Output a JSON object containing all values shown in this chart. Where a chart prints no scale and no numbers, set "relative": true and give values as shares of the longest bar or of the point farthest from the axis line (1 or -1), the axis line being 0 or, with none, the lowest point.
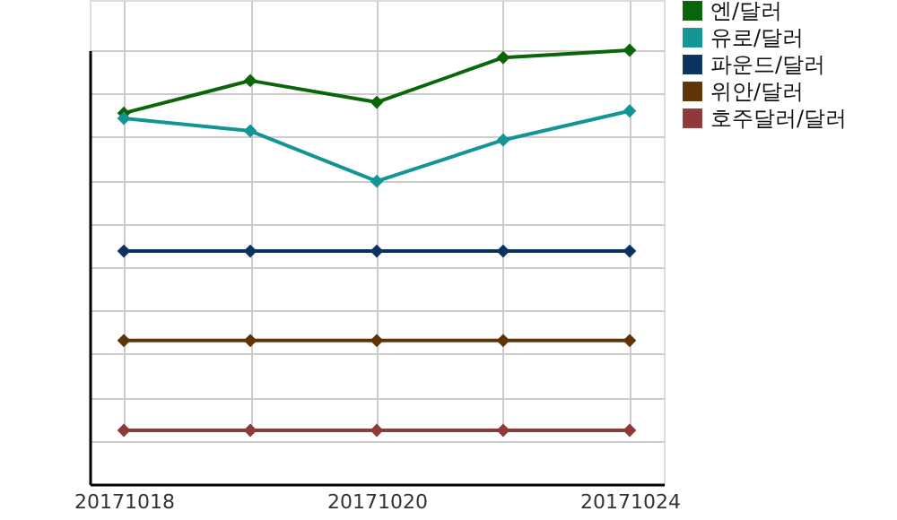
{
  "chart_data": {
    "type": "line",
    "relative": true,
    "categories": [
      "20171018",
      null,
      "20171020",
      null,
      "20171024"
    ],
    "series": [
      {
        "name": "엔/달러",
        "color": "#0b660b",
        "values": [
          0.855,
          0.93,
          0.88,
          0.983,
          1
        ]
      },
      {
        "name": "유로/달러",
        "color": "#139595",
        "values": [
          0.843,
          0.814,
          0.698,
          0.793,
          0.86
        ]
      },
      {
        "name": "파운드/달러",
        "color": "#0c3260",
        "values": [
          0.537,
          0.537,
          0.537,
          0.537,
          0.537
        ]
      },
      {
        "name": "위안/달러",
        "color": "#5e3408",
        "values": [
          0.331,
          0.331,
          0.331,
          0.331,
          0.331
        ]
      },
      {
        "name": "호주달러/달러",
        "color": "#8e3a3a",
        "values": [
          0.124,
          0.124,
          0.124,
          0.124,
          0.124
        ]
      }
    ],
    "marker": "diamond",
    "grid": true,
    "legend": "top right"
  }
}
